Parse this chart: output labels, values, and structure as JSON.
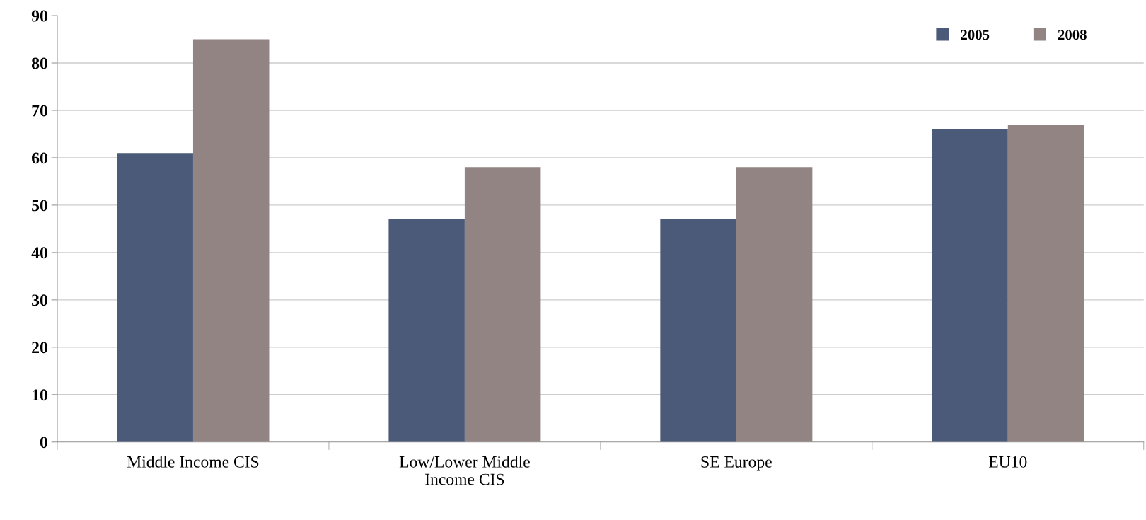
{
  "chart_data": {
    "type": "bar",
    "categories": [
      "Middle Income CIS",
      "Low/Lower Middle\nIncome CIS",
      "SE Europe",
      "EU10"
    ],
    "series": [
      {
        "name": "2005",
        "color": "#4a5a78",
        "values": [
          61,
          47,
          47,
          66
        ]
      },
      {
        "name": "2008",
        "color": "#918482",
        "values": [
          85,
          58,
          58,
          67
        ]
      }
    ],
    "ylim": [
      0,
      90
    ],
    "yticks": [
      0,
      10,
      20,
      30,
      40,
      50,
      60,
      70,
      80,
      90
    ],
    "grid": "y",
    "legend": "top right"
  }
}
